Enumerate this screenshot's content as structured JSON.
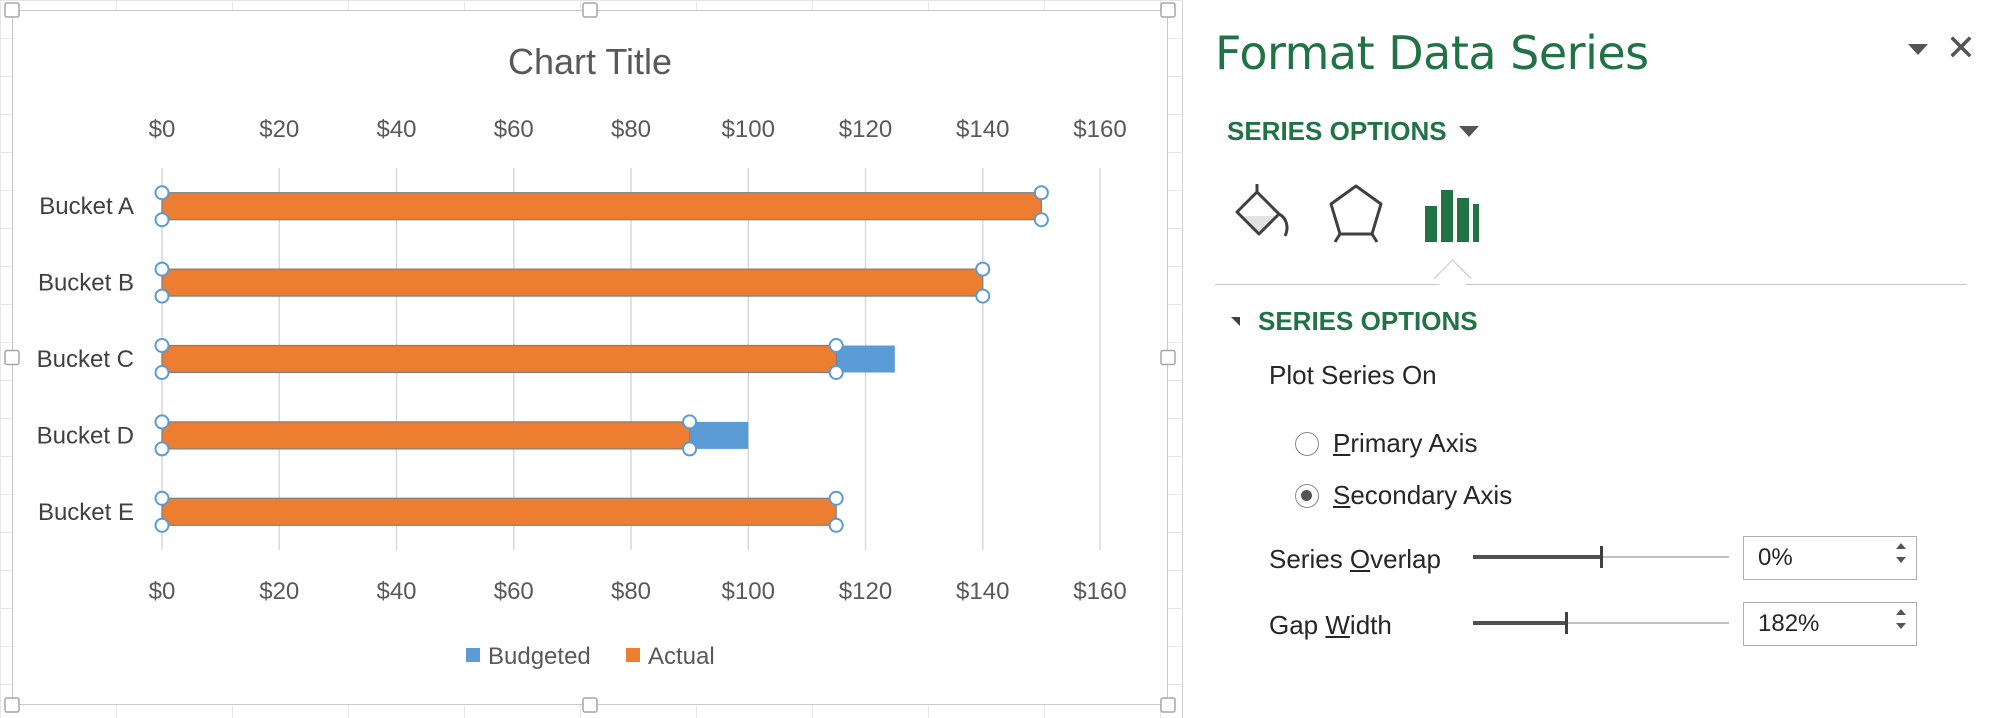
{
  "chart_data": {
    "type": "bar",
    "orientation": "horizontal",
    "title": "Chart Title",
    "categories": [
      "Bucket A",
      "Bucket B",
      "Bucket C",
      "Bucket D",
      "Bucket E"
    ],
    "series": [
      {
        "name": "Budgeted",
        "color": "#5b9bd5",
        "axis": "primary",
        "values": [
          150,
          140,
          125,
          100,
          115
        ]
      },
      {
        "name": "Actual",
        "color": "#ed7d31",
        "axis": "secondary",
        "values": [
          150,
          140,
          115,
          90,
          115
        ]
      }
    ],
    "xlim": [
      0,
      160
    ],
    "ticks": [
      0,
      20,
      40,
      60,
      80,
      100,
      120,
      140,
      160
    ],
    "tick_labels": [
      "$0",
      "$20",
      "$40",
      "$60",
      "$80",
      "$100",
      "$120",
      "$140",
      "$160"
    ],
    "legend_position": "bottom",
    "grid": true
  },
  "pane": {
    "title": "Format Data Series",
    "close_glyph": "✕",
    "dropdown_label": "SERIES OPTIONS",
    "icons": [
      "fill-line-icon",
      "effects-icon",
      "series-options-icon"
    ],
    "section_title": "SERIES OPTIONS",
    "plot_series_on": "Plot Series On",
    "radio_primary": {
      "key": "P",
      "rest": "rimary Axis",
      "checked": false
    },
    "radio_secondary": {
      "key": "S",
      "rest": "econdary Axis",
      "checked": true
    },
    "overlap": {
      "pre": "Series ",
      "key": "O",
      "post": "verlap",
      "value": "0%",
      "level_percent": 50
    },
    "gap": {
      "pre": "Gap ",
      "key": "W",
      "post": "idth",
      "value": "182%",
      "level_percent": 36.4
    }
  }
}
